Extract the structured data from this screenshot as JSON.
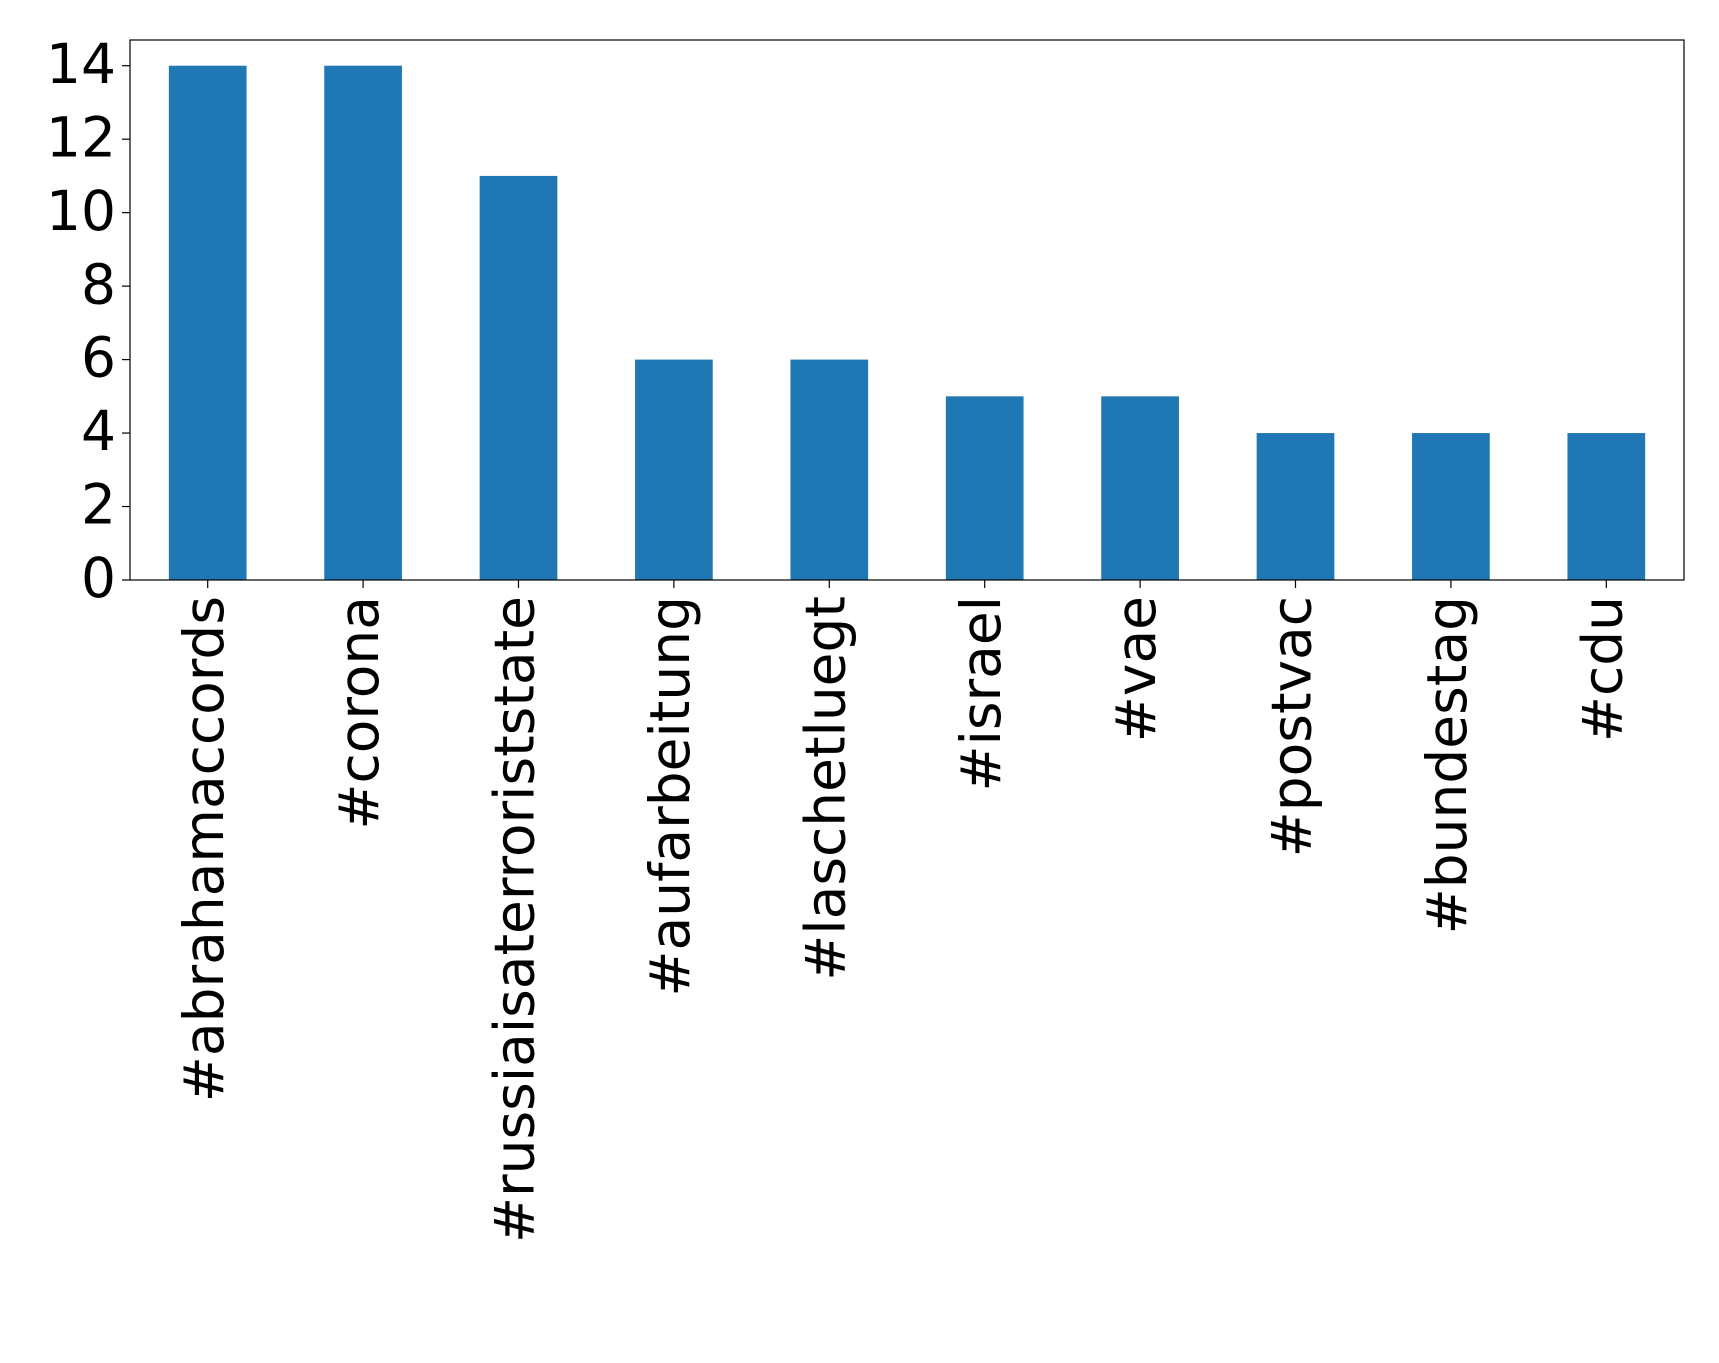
{
  "chart_data": {
    "type": "bar",
    "categories": [
      "#abrahamaccords",
      "#corona",
      "#russiaisaterroriststate",
      "#aufarbeitung",
      "#laschetluegt",
      "#israel",
      "#vae",
      "#postvac",
      "#bundestag",
      "#cdu"
    ],
    "values": [
      14,
      14,
      11,
      6,
      6,
      5,
      5,
      4,
      4,
      4
    ],
    "color": "#1f77b4",
    "ylim": [
      0,
      14.7
    ],
    "yticks": [
      0,
      2,
      4,
      6,
      8,
      10,
      12,
      14
    ],
    "grid": false
  }
}
